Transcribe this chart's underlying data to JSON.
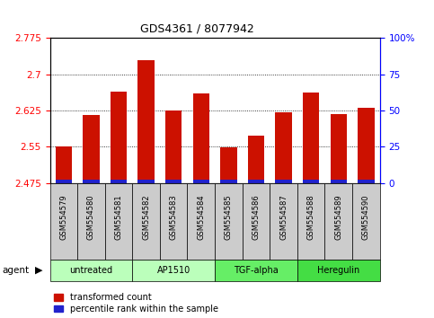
{
  "title": "GDS4361 / 8077942",
  "samples": [
    "GSM554579",
    "GSM554580",
    "GSM554581",
    "GSM554582",
    "GSM554583",
    "GSM554584",
    "GSM554585",
    "GSM554586",
    "GSM554587",
    "GSM554588",
    "GSM554589",
    "GSM554590"
  ],
  "transformed_count": [
    2.55,
    2.615,
    2.665,
    2.73,
    2.625,
    2.66,
    2.548,
    2.572,
    2.621,
    2.663,
    2.618,
    2.63
  ],
  "y_min": 2.475,
  "y_max": 2.775,
  "y_ticks": [
    2.475,
    2.55,
    2.625,
    2.7,
    2.775
  ],
  "right_y_ticks": [
    0,
    25,
    50,
    75,
    100
  ],
  "right_y_labels": [
    "0",
    "25",
    "50",
    "75",
    "100%"
  ],
  "bar_color_red": "#cc1100",
  "bar_color_blue": "#2222cc",
  "blue_bar_height": 0.007,
  "bar_width": 0.6,
  "group_defs": [
    {
      "start": 0,
      "end": 2,
      "label": "untreated",
      "color": "#bbffbb"
    },
    {
      "start": 3,
      "end": 5,
      "label": "AP1510",
      "color": "#bbffbb"
    },
    {
      "start": 6,
      "end": 8,
      "label": "TGF-alpha",
      "color": "#66ee66"
    },
    {
      "start": 9,
      "end": 11,
      "label": "Heregulin",
      "color": "#44dd44"
    }
  ],
  "legend_labels": [
    "transformed count",
    "percentile rank within the sample"
  ],
  "agent_label": "agent",
  "sample_bg": "#cccccc",
  "title_fontsize": 9,
  "tick_fontsize": 7.5,
  "sample_fontsize": 6,
  "group_fontsize": 7,
  "legend_fontsize": 7
}
